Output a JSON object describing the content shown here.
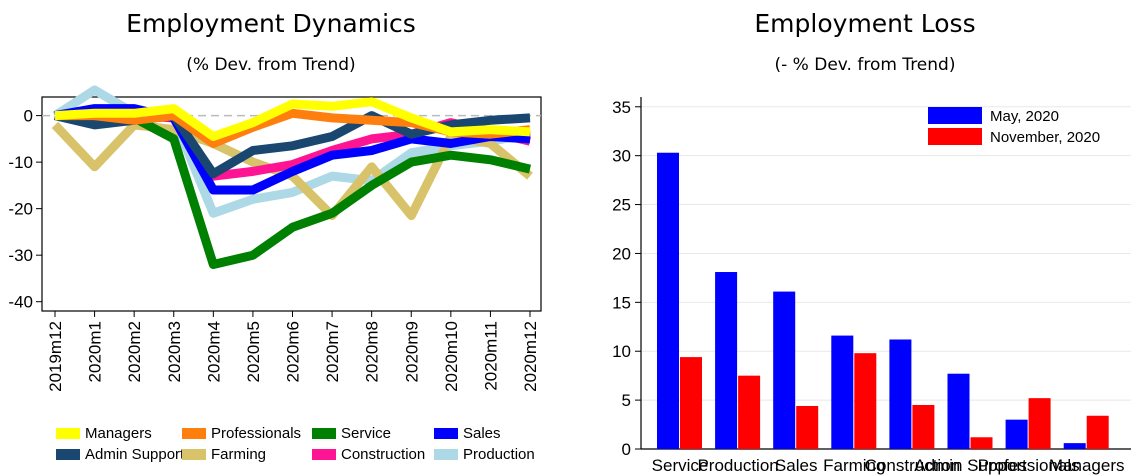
{
  "chart_data": [
    {
      "type": "line",
      "title": "Employment Dynamics",
      "subtitle": "(% Dev. from Trend)",
      "x": [
        "2019m12",
        "2020m1",
        "2020m2",
        "2020m3",
        "2020m4",
        "2020m5",
        "2020m6",
        "2020m7",
        "2020m8",
        "2020m9",
        "2020m10",
        "2020m11",
        "2020m12"
      ],
      "ylim": [
        -42,
        4
      ],
      "yticks": [
        0,
        -10,
        -20,
        -30,
        -40
      ],
      "reference_line": 0,
      "series": [
        {
          "name": "Production",
          "color": "#add8e6",
          "values": [
            0,
            5.5,
            0.5,
            -0.5,
            -21,
            -18,
            -16.5,
            -13,
            -14,
            -8,
            -6.5,
            -5.5,
            -4
          ]
        },
        {
          "name": "Farming",
          "color": "#d8c36a",
          "values": [
            -2,
            -11,
            -2,
            -3,
            -6,
            -10,
            -13,
            -21.5,
            -11,
            -21.5,
            -4.5,
            -6,
            -13
          ]
        },
        {
          "name": "Construction",
          "color": "#ff1493",
          "values": [
            0,
            -0.5,
            0,
            -0.5,
            -13,
            -12,
            -10.5,
            -7.5,
            -5,
            -4,
            -1.5,
            -3.5,
            -5.5
          ]
        },
        {
          "name": "Service",
          "color": "#008000",
          "values": [
            0,
            0,
            -0.5,
            -5,
            -32,
            -30,
            -24,
            -21,
            -15,
            -10,
            -8.5,
            -9.5,
            -11.5
          ]
        },
        {
          "name": "Sales",
          "color": "#0000ff",
          "values": [
            0,
            1.5,
            1.5,
            -0.5,
            -16,
            -16,
            -12,
            -8.5,
            -7.5,
            -5,
            -6,
            -4.5,
            -5
          ]
        },
        {
          "name": "Admin Support",
          "color": "#1a476f",
          "values": [
            0,
            -2,
            -1,
            0,
            -12.5,
            -7.5,
            -6.5,
            -4.5,
            0,
            -4,
            -2,
            -1,
            -0.5
          ]
        },
        {
          "name": "Professionals",
          "color": "#ff7f0e",
          "values": [
            0,
            0,
            -1,
            0,
            -6,
            -2.5,
            0.5,
            -0.5,
            -1,
            -1.5,
            -3.5,
            -4,
            -3
          ]
        },
        {
          "name": "Managers",
          "color": "#ffff00",
          "values": [
            0,
            0.5,
            0.5,
            1.5,
            -4.5,
            -1.5,
            2.5,
            2,
            3,
            -0.5,
            -3.5,
            -3,
            -3.5
          ]
        }
      ],
      "legend_order": [
        [
          "Managers",
          "Professionals",
          "Service",
          "Sales"
        ],
        [
          "Admin Support",
          "Farming",
          "Construction",
          "Production"
        ]
      ],
      "legend_placement": "bottom"
    },
    {
      "type": "bar",
      "title": "Employment Loss",
      "subtitle": "(- % Dev. from Trend)",
      "categories": [
        "Service",
        "Production",
        "Sales",
        "Farming",
        "Construction",
        "Admin Support",
        "Professionals",
        "Managers"
      ],
      "ylim": [
        0,
        36
      ],
      "yticks": [
        0,
        5,
        10,
        15,
        20,
        25,
        30,
        35
      ],
      "series": [
        {
          "name": "May, 2020",
          "color": "#0000ff",
          "values": [
            30.3,
            18.1,
            16.1,
            11.6,
            11.2,
            7.7,
            3.0,
            0.6
          ]
        },
        {
          "name": "November, 2020",
          "color": "#ff0000",
          "values": [
            9.4,
            7.5,
            4.4,
            9.8,
            4.5,
            1.2,
            5.2,
            3.4
          ]
        }
      ],
      "legend_placement": "top-right",
      "grid": true
    }
  ]
}
